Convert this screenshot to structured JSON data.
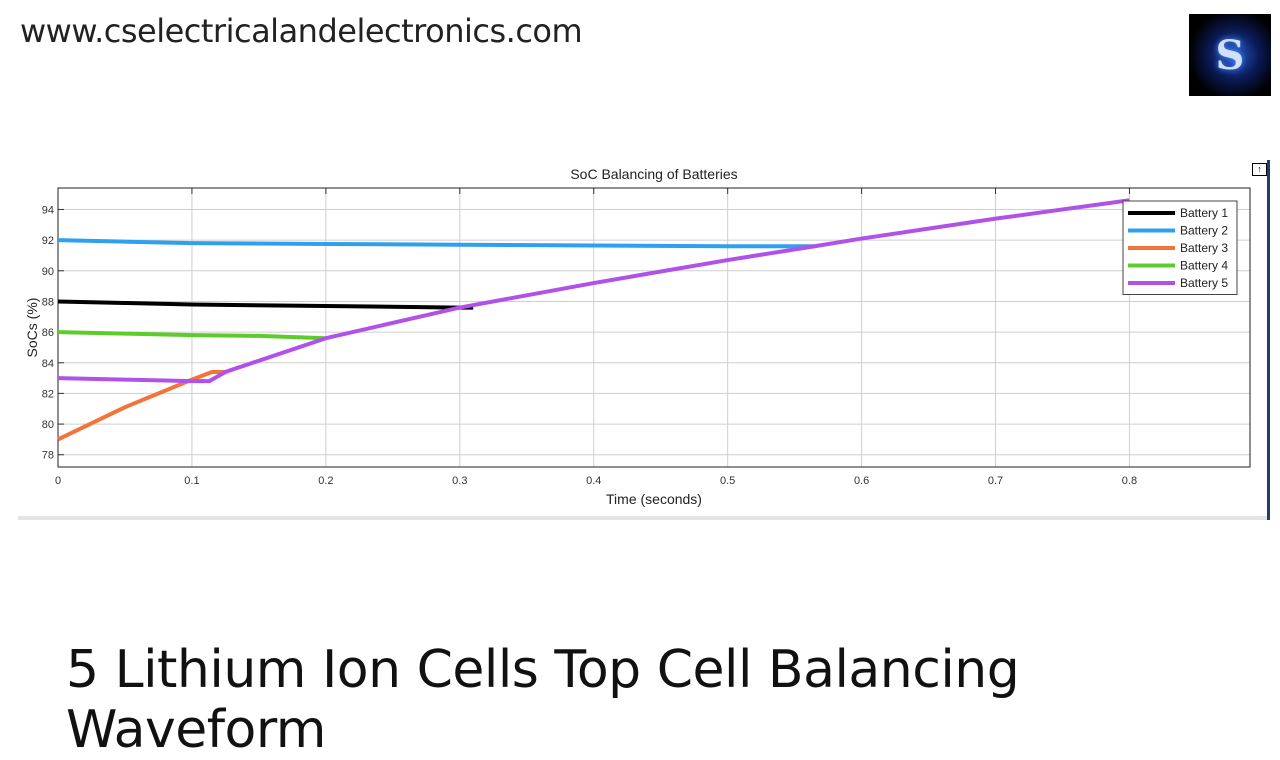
{
  "header": {
    "site_url": "www.cselectricalandelectronics.com",
    "logo_text": "S"
  },
  "caption": "5 Lithium Ion Cells Top Cell Balancing Waveform",
  "undock_icon": "arrow-up-box-icon",
  "chart_data": {
    "type": "line",
    "title": "SoC Balancing of Batteries",
    "xlabel": "Time (seconds)",
    "ylabel": "SoCs (%)",
    "xlim": [
      0,
      0.89
    ],
    "ylim": [
      77.2,
      95.4
    ],
    "xticks": [
      0,
      0.1,
      0.2,
      0.3,
      0.4,
      0.5,
      0.6,
      0.7,
      0.8
    ],
    "xtick_labels": [
      "0",
      "0.1",
      "0.2",
      "0.3",
      "0.4",
      "0.5",
      "0.6",
      "0.7",
      "0.8"
    ],
    "yticks": [
      78,
      80,
      82,
      84,
      86,
      88,
      90,
      92,
      94
    ],
    "ytick_labels": [
      "78",
      "80",
      "82",
      "84",
      "86",
      "88",
      "90",
      "92",
      "94"
    ],
    "grid": true,
    "legend_position": "top-right",
    "series": [
      {
        "name": "Battery 1",
        "color": "#000000",
        "x": [
          0,
          0.05,
          0.1,
          0.2,
          0.3,
          0.31
        ],
        "y": [
          88,
          87.9,
          87.8,
          87.7,
          87.6,
          87.6
        ]
      },
      {
        "name": "Battery 2",
        "color": "#2ea0ee",
        "x": [
          0,
          0.05,
          0.1,
          0.2,
          0.3,
          0.4,
          0.5,
          0.565
        ],
        "y": [
          92,
          91.9,
          91.8,
          91.75,
          91.7,
          91.65,
          91.6,
          91.6
        ]
      },
      {
        "name": "Battery 3",
        "color": "#f2743a",
        "x": [
          0,
          0.05,
          0.1,
          0.115,
          0.125
        ],
        "y": [
          79,
          81.1,
          82.9,
          83.4,
          83.4
        ]
      },
      {
        "name": "Battery 4",
        "color": "#5ccc2a",
        "x": [
          0,
          0.05,
          0.1,
          0.15,
          0.2
        ],
        "y": [
          86,
          85.9,
          85.8,
          85.75,
          85.6
        ]
      },
      {
        "name": "Battery 5",
        "color": "#b052e8",
        "x": [
          0,
          0.05,
          0.1,
          0.113,
          0.125,
          0.2,
          0.3,
          0.4,
          0.5,
          0.565,
          0.6,
          0.7,
          0.8
        ],
        "y": [
          83,
          82.9,
          82.8,
          82.8,
          83.4,
          85.6,
          87.6,
          89.2,
          90.7,
          91.6,
          92.1,
          93.4,
          94.6
        ]
      }
    ]
  }
}
